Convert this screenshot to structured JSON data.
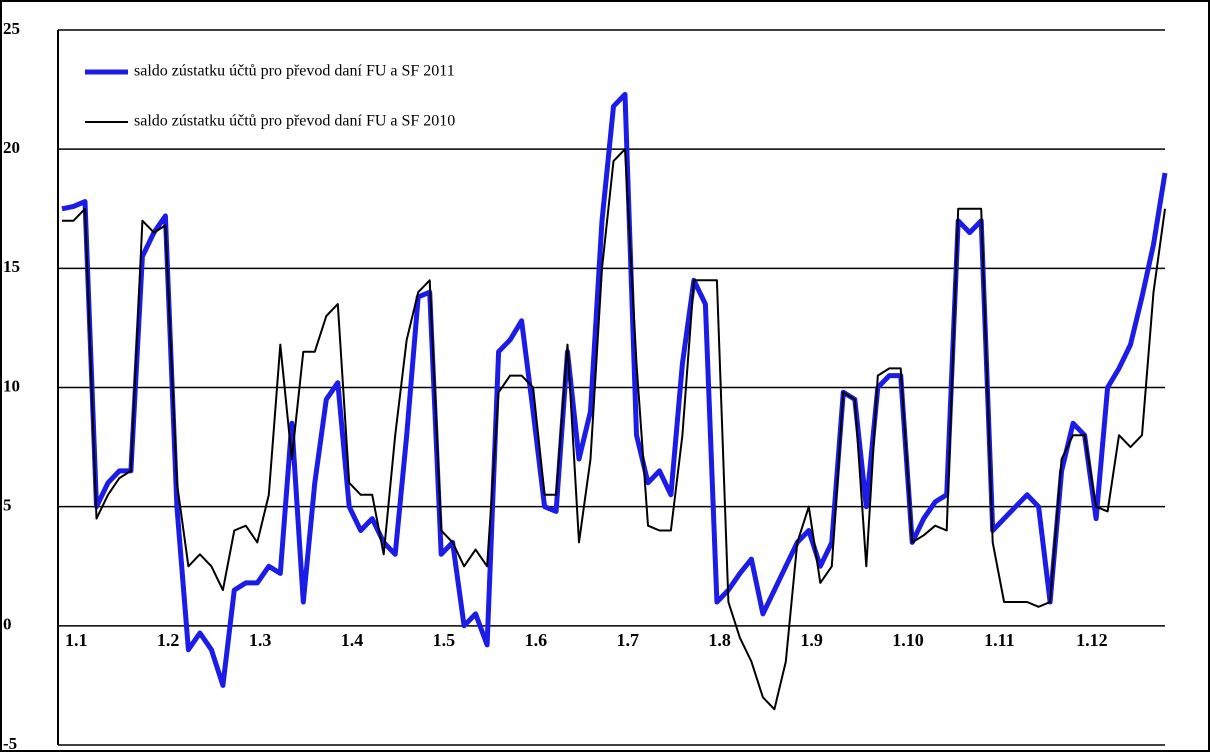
{
  "chart_data": {
    "type": "line",
    "categories": [
      "1.1",
      null,
      null,
      null,
      null,
      null,
      null,
      null,
      "1.2",
      null,
      null,
      null,
      null,
      null,
      null,
      null,
      "1.3",
      null,
      null,
      null,
      null,
      null,
      null,
      null,
      "1.4",
      null,
      null,
      null,
      null,
      null,
      null,
      null,
      "1.5",
      null,
      null,
      null,
      null,
      null,
      null,
      null,
      "1.6",
      null,
      null,
      null,
      null,
      null,
      null,
      null,
      "1.7",
      null,
      null,
      null,
      null,
      null,
      null,
      null,
      "1.8",
      null,
      null,
      null,
      null,
      null,
      null,
      null,
      "1.9",
      null,
      null,
      null,
      null,
      null,
      null,
      null,
      "1.10",
      null,
      null,
      null,
      null,
      null,
      null,
      null,
      "1.11",
      null,
      null,
      null,
      null,
      null,
      null,
      null,
      "1.12",
      null,
      null,
      null,
      null,
      null,
      null,
      null,
      null
    ],
    "series": [
      {
        "name": "saldo zústatku účtů pro převod daní FU a SF 2011",
        "color": "#1c1ce8",
        "values": [
          17.5,
          17.6,
          17.8,
          5,
          6,
          6.5,
          6.5,
          15.5,
          16.5,
          17.2,
          5,
          -1,
          -0.3,
          -1,
          -2.5,
          1.5,
          1.8,
          1.8,
          2.5,
          2.2,
          8.5,
          1,
          6,
          9.5,
          10.2,
          5,
          4,
          4.5,
          3.5,
          3,
          8,
          13.8,
          14,
          3,
          3.5,
          0,
          0.5,
          -0.8,
          11.5,
          12,
          12.8,
          9,
          5,
          4.8,
          11.5,
          7,
          9,
          17,
          21.8,
          22.3,
          8,
          6,
          6.5,
          5.5,
          11,
          14.5,
          13.5,
          1,
          1.5,
          2.2,
          2.8,
          0.5,
          1.5,
          2.5,
          3.5,
          4,
          2.5,
          3.5,
          9.8,
          9.5,
          5,
          10,
          10.5,
          10.5,
          3.5,
          4.5,
          5.2,
          5.5,
          17,
          16.5,
          17,
          4,
          4.5,
          5,
          5.5,
          5,
          1,
          6.5,
          8.5,
          8,
          4.5,
          10,
          10.8,
          11.8,
          13.8,
          16,
          19
        ]
      },
      {
        "name": "saldo zústatku účtů pro převod daní FU a SF 2010",
        "color": "#000000",
        "values": [
          17,
          17,
          17.5,
          4.5,
          5.5,
          6.2,
          6.5,
          17,
          16.5,
          16.8,
          6,
          2.5,
          3,
          2.5,
          1.5,
          4,
          4.2,
          3.5,
          5.5,
          11.8,
          7,
          11.5,
          11.5,
          13,
          13.5,
          6,
          5.5,
          5.5,
          3,
          8,
          12,
          14,
          14.5,
          4,
          3.5,
          2.5,
          3.2,
          2.5,
          9.8,
          10.5,
          10.5,
          10,
          5.5,
          5.5,
          11.8,
          3.5,
          7,
          15,
          19.5,
          20,
          11,
          4.2,
          4,
          4,
          8,
          14.5,
          14.5,
          14.5,
          1,
          -0.5,
          -1.5,
          -3,
          -3.5,
          -1.5,
          3.5,
          5,
          1.8,
          2.5,
          9.8,
          9.5,
          2.5,
          10.5,
          10.8,
          10.8,
          3.5,
          3.8,
          4.2,
          4,
          17.5,
          17.5,
          17.5,
          3.5,
          1,
          1,
          1,
          0.8,
          1,
          7,
          8,
          8,
          5,
          4.8,
          8,
          7.5,
          8,
          14,
          17.5
        ]
      }
    ],
    "ylim": [
      -5,
      25
    ],
    "yticks": [
      -5,
      0,
      5,
      10,
      15,
      20,
      25
    ],
    "grid": true
  }
}
